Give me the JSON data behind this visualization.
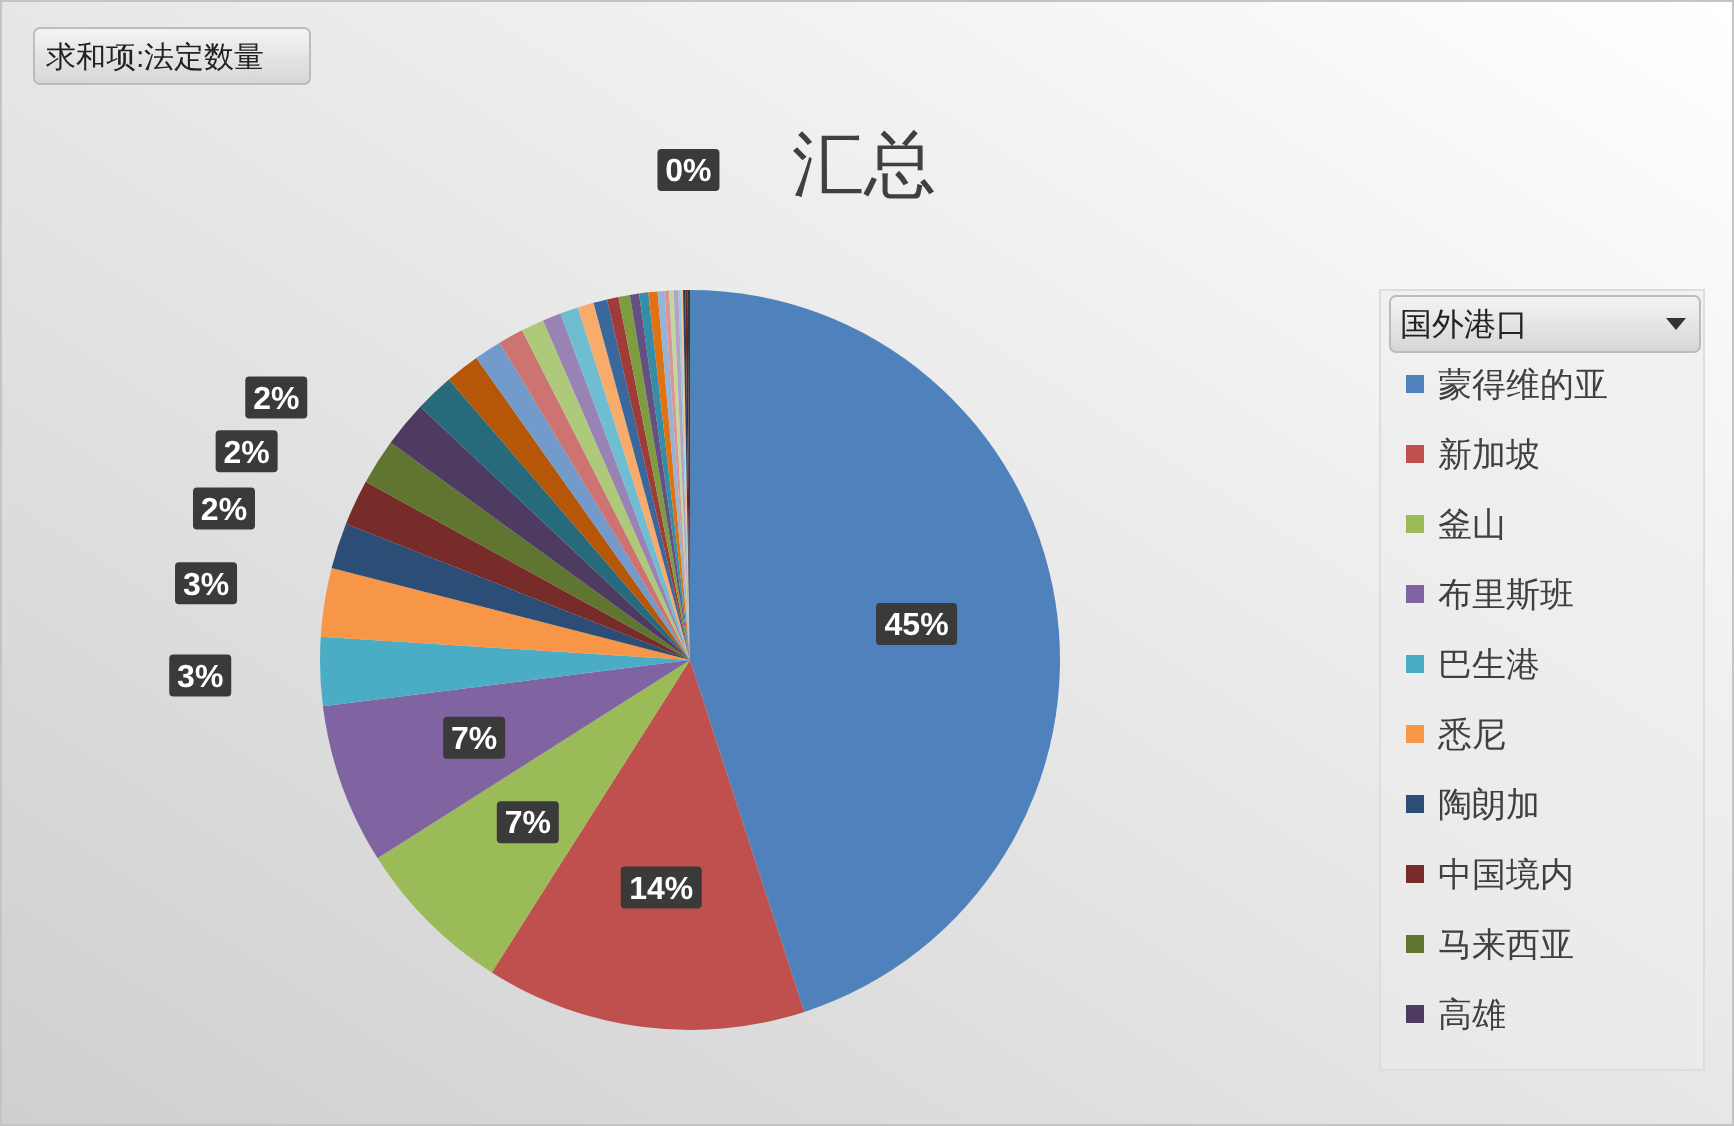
{
  "chart_data": {
    "type": "pie",
    "title": "汇总",
    "annotations": [
      "求和项:法定数量"
    ],
    "legend_title": "国外港口",
    "legend": "right",
    "categories": [
      "蒙得维的亚",
      "新加坡",
      "釜山",
      "布里斯班",
      "巴生港",
      "悉尼",
      "陶朗加",
      "中国境内",
      "马来西亚",
      "高雄",
      null,
      null,
      null,
      null,
      null,
      null,
      null,
      null,
      null,
      null,
      null,
      null,
      null,
      null,
      null,
      null,
      null,
      null,
      null,
      null,
      null,
      null,
      null
    ],
    "values": [
      45,
      14,
      7,
      7,
      3,
      3,
      2,
      2,
      2,
      2,
      1.7,
      1.5,
      1.2,
      1.1,
      1.0,
      0.8,
      0.8,
      0.7,
      0.6,
      0.5,
      0.5,
      0.4,
      0.4,
      0.4,
      0.3,
      0.2,
      0.2,
      0.2,
      0.1,
      0.1,
      0.1,
      0.1,
      0.1
    ],
    "value_labels": [
      "45%",
      "14%",
      "7%",
      "7%",
      "3%",
      "3%",
      "2%",
      "2%",
      "2%",
      null,
      null,
      null,
      null,
      null,
      null,
      null,
      null,
      null,
      null,
      null,
      null,
      null,
      null,
      null,
      null,
      null,
      null,
      null,
      null,
      null,
      null,
      null,
      "0%"
    ],
    "colors": [
      "#4f81bd",
      "#c0504d",
      "#9bbb59",
      "#8064a2",
      "#4bacc6",
      "#f79646",
      "#2c4d75",
      "#772c2a",
      "#5f7530",
      "#4d3b62",
      "#276a7c",
      "#b65708",
      "#729aca",
      "#cd7371",
      "#afc97a",
      "#9983b5",
      "#6fbdd1",
      "#f9ab6b",
      "#3a679c",
      "#9f3b38",
      "#7e9d40",
      "#664f83",
      "#358ea6",
      "#e07212",
      "#95b3d7",
      "#d99694",
      "#c3d69b",
      "#b2a2c7",
      "#93cddd",
      "#fac090",
      "#254061",
      "#632523",
      "#3d3a2a"
    ]
  }
}
